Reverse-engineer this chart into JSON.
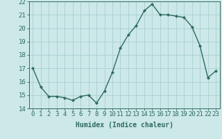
{
  "x": [
    0,
    1,
    2,
    3,
    4,
    5,
    6,
    7,
    8,
    9,
    10,
    11,
    12,
    13,
    14,
    15,
    16,
    17,
    18,
    19,
    20,
    21,
    22,
    23
  ],
  "y": [
    17.0,
    15.6,
    14.9,
    14.9,
    14.8,
    14.6,
    14.9,
    15.0,
    14.4,
    15.3,
    16.7,
    18.5,
    19.5,
    20.2,
    21.3,
    21.8,
    21.0,
    21.0,
    20.9,
    20.8,
    20.1,
    18.7,
    16.3,
    16.8
  ],
  "line_color": "#2e6b5e",
  "marker": "D",
  "markersize": 2.2,
  "linewidth": 1.0,
  "bg_color": "#cce8e8",
  "grid_color": "#aacfcf",
  "xlabel": "Humidex (Indice chaleur)",
  "xlim": [
    -0.5,
    23.5
  ],
  "ylim": [
    14.0,
    22.0
  ],
  "yticks": [
    14,
    15,
    16,
    17,
    18,
    19,
    20,
    21,
    22
  ],
  "xticks": [
    0,
    1,
    2,
    3,
    4,
    5,
    6,
    7,
    8,
    9,
    10,
    11,
    12,
    13,
    14,
    15,
    16,
    17,
    18,
    19,
    20,
    21,
    22,
    23
  ],
  "xlabel_fontsize": 7,
  "tick_fontsize": 6.5,
  "tick_color": "#2e6b5e",
  "label_color": "#2e6b5e"
}
